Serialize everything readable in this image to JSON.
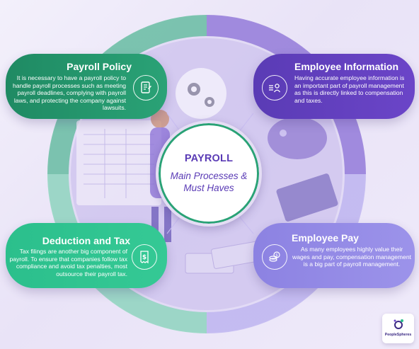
{
  "hub": {
    "title": "PAYROLL",
    "subtitle_line1": "Main Processes &",
    "subtitle_line2": "Must Haves"
  },
  "cards": {
    "payroll_policy": {
      "title": "Payroll Policy",
      "body": "It is necessary to have a payroll policy to handle payroll processes such as meeting payroll deadlines, complying with payroll laws, and protecting the company against lawsuits.",
      "icon": "policy-document-icon",
      "color": "#2aa276"
    },
    "employee_information": {
      "title": "Employee Information",
      "body": "Having accurate employee information is an important part of payroll management as this is directly linked to compensation and taxes.",
      "icon": "employee-profile-icon",
      "color": "#6b45c8"
    },
    "deduction_and_tax": {
      "title": "Deduction and Tax",
      "body": "Tax filings are another big component of payroll. To ensure that companies follow tax compliance and avoid tax penalties, most outsource their payroll tax.",
      "icon": "tax-receipt-icon",
      "color": "#35c995"
    },
    "employee_pay": {
      "title": "Employee Pay",
      "body": "As many employees highly value their wages and pay, compensation management is a big part of payroll management.",
      "icon": "coins-icon",
      "color": "#9c93ea"
    }
  },
  "logo": {
    "text": "PeopleSpheres",
    "icon": "peoplespheres-logo-icon"
  }
}
